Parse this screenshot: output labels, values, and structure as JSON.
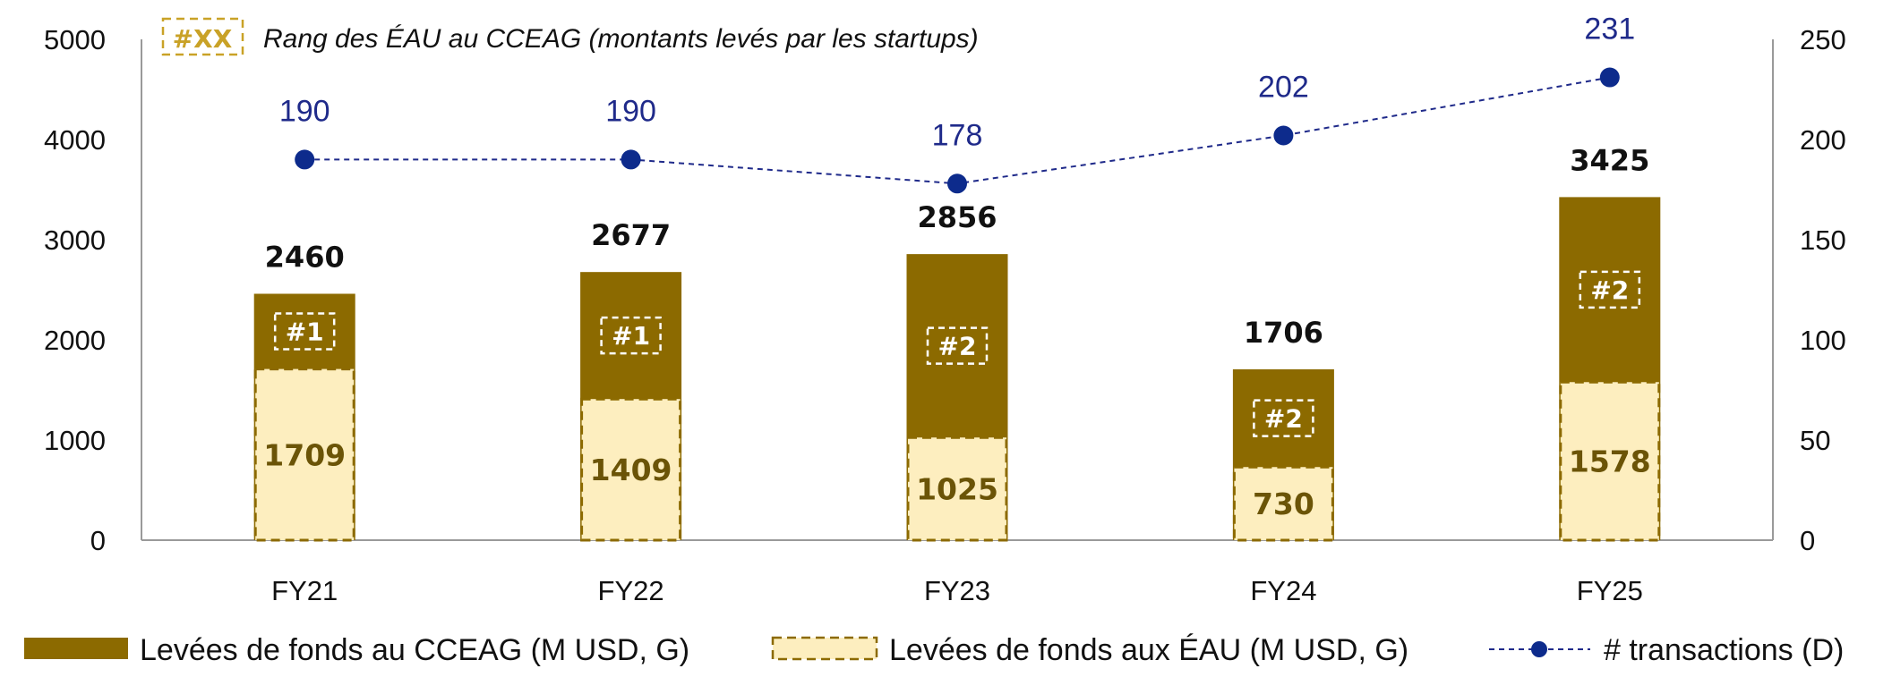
{
  "chart_data": {
    "type": "bar",
    "categories": [
      "FY21",
      "FY22",
      "FY23",
      "FY24",
      "FY25"
    ],
    "series": [
      {
        "name": "Levées de fonds au CCEAG (M USD, G)",
        "axis": "left",
        "kind": "bar",
        "values": [
          2460,
          2677,
          2856,
          1706,
          3425
        ]
      },
      {
        "name": "Levées de fonds aux ÉAU (M USD, G)",
        "axis": "left",
        "kind": "bar-overlay",
        "values": [
          1709,
          1409,
          1025,
          730,
          1578
        ]
      },
      {
        "name": "# transactions (D)",
        "axis": "right",
        "kind": "line",
        "values": [
          190,
          190,
          178,
          202,
          231
        ]
      }
    ],
    "ranks": [
      "#1",
      "#1",
      "#2",
      "#2",
      "#2"
    ],
    "annotation": {
      "key": "#XX",
      "text": "Rang des ÉAU au CCEAG (montants levés par les startups)"
    },
    "yleft": {
      "lim": [
        0,
        5000
      ],
      "ticks": [
        0,
        1000,
        2000,
        3000,
        4000,
        5000
      ]
    },
    "yright": {
      "lim": [
        0,
        250
      ],
      "ticks": [
        0,
        50,
        100,
        150,
        200,
        250
      ]
    },
    "legend_position": "bottom",
    "grid": false,
    "colors": {
      "gcc": "#8c6a00",
      "uae_fill": "#fdeebf",
      "uae_border": "#8c6a00",
      "line": "#1f2a8a",
      "marker": "#0d2b8c",
      "rank_key": "#c9a227"
    }
  }
}
